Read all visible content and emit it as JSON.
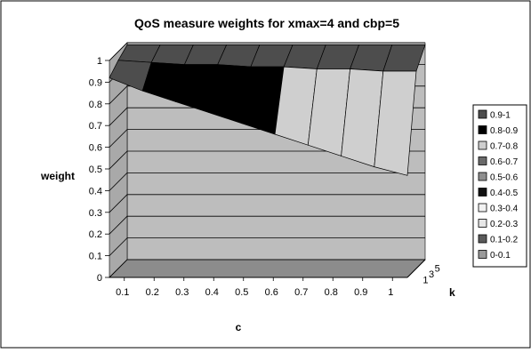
{
  "chart_data": {
    "type": "surface",
    "title": "QoS measure weights for xmax=4 and cbp=5",
    "xlabel": "c",
    "ylabel": "weight",
    "zlabel": "k",
    "x": [
      "0.1",
      "0.2",
      "0.3",
      "0.4",
      "0.5",
      "0.6",
      "0.7",
      "0.8",
      "0.9",
      "1"
    ],
    "z": [
      "1",
      "3",
      "5"
    ],
    "ylim": [
      0,
      1
    ],
    "yticks": [
      "0",
      "0.1",
      "0.2",
      "0.3",
      "0.4",
      "0.5",
      "0.6",
      "0.7",
      "0.8",
      "0.9",
      "1"
    ],
    "grid": true,
    "legend_position": "right",
    "legend": [
      {
        "label": "0.9-1",
        "color": "#4d4d4d"
      },
      {
        "label": "0.8-0.9",
        "color": "#000000"
      },
      {
        "label": "0.7-0.8",
        "color": "#cfcfcf"
      },
      {
        "label": "0.6-0.7",
        "color": "#6a6a6a"
      },
      {
        "label": "0.5-0.6",
        "color": "#8f8f8f"
      },
      {
        "label": "0.4-0.5",
        "color": "#111111"
      },
      {
        "label": "0.3-0.4",
        "color": "#f2f2f2"
      },
      {
        "label": "0.2-0.3",
        "color": "#e6e6e6"
      },
      {
        "label": "0.1-0.2",
        "color": "#5a5a5a"
      },
      {
        "label": "0-0.1",
        "color": "#9a9a9a"
      }
    ],
    "series": [
      {
        "k": "1",
        "values": [
          0.92,
          0.86,
          0.81,
          0.76,
          0.71,
          0.66,
          0.61,
          0.56,
          0.51,
          0.47
        ]
      },
      {
        "k": "3",
        "values": [
          0.96,
          0.95,
          0.94,
          0.94,
          0.93,
          0.93,
          0.92,
          0.92,
          0.91,
          0.91
        ]
      },
      {
        "k": "5",
        "values": [
          0.99,
          0.99,
          0.99,
          0.99,
          0.99,
          0.99,
          0.99,
          0.99,
          0.99,
          0.99
        ]
      }
    ]
  }
}
